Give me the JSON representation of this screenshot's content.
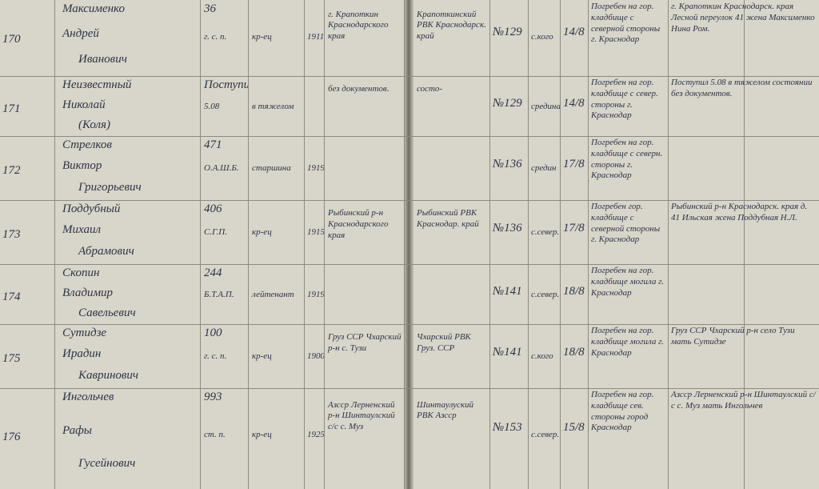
{
  "rows": [
    {
      "number": "170",
      "surname": "Максименко",
      "first_name": "Андрей",
      "patronymic": "Иванович",
      "unit": "36",
      "unit_type": "г. с. п.",
      "rank": "кр-ец",
      "birth_year": "1911",
      "birthplace": "г. Крапоткин Краснодарского края",
      "draft_office": "Крапоткинский РВК Краснодарск. край",
      "record_no": "№129",
      "cause": "с.кого",
      "date": "14/8",
      "burial": "Погребен на гор. кладбище с северной стороны г. Краснодар",
      "relatives": "г. Крапоткин Краснодарск. края Лесной переулок 41 жена Максименко Нина Ром."
    },
    {
      "number": "171",
      "surname": "Неизвестный",
      "first_name": "Николай",
      "patronymic": "(Коля)",
      "unit": "Поступил",
      "unit_type": "5.08",
      "rank": "в тяжелом",
      "birth_year": "",
      "birthplace": "без документов.",
      "draft_office": "состо-",
      "record_no": "№129",
      "cause": "средина",
      "date": "14/8",
      "burial": "Погребен на гор. кладбище с север. стороны г. Краснодар",
      "relatives": "Поступил 5.08 в тяжелом состоянии без документов."
    },
    {
      "number": "172",
      "surname": "Стрелков",
      "first_name": "Виктор",
      "patronymic": "Григорьевич",
      "unit": "471",
      "unit_type": "О.А.Ш.Б.",
      "rank": "старшина",
      "birth_year": "1919",
      "birthplace": "",
      "draft_office": "",
      "record_no": "№136",
      "cause": "средин",
      "date": "17/8",
      "burial": "Погребен на гор. кладбище с северн. стороны г. Краснодар",
      "relatives": ""
    },
    {
      "number": "173",
      "surname": "Поддубный",
      "first_name": "Михаил",
      "patronymic": "Абрамович",
      "unit": "406",
      "unit_type": "С.Г.П.",
      "rank": "кр-ец",
      "birth_year": "1915",
      "birthplace": "Рыбинский р-н Краснодарского края",
      "draft_office": "Рыбинский РВК Краснодар. край",
      "record_no": "№136",
      "cause": "с.север.",
      "date": "17/8",
      "burial": "Погребен гор. кладбище с северной стороны г. Краснодар",
      "relatives": "Рыбинский р-н Краснодарск. края д. 41 Ильская жена Поддубная Н.Л."
    },
    {
      "number": "174",
      "surname": "Скопин",
      "first_name": "Владимир",
      "patronymic": "Савельевич",
      "unit": "244",
      "unit_type": "Б.Т.А.П.",
      "rank": "лейтенант",
      "birth_year": "1919",
      "birthplace": "",
      "draft_office": "",
      "record_no": "№141",
      "cause": "с.север.",
      "date": "18/8",
      "burial": "Погребен на гор. кладбище могила г. Краснодар",
      "relatives": ""
    },
    {
      "number": "175",
      "surname": "Сутидзе",
      "first_name": "Ирадин",
      "patronymic": "Кавринович",
      "unit": "100",
      "unit_type": "г. с. п.",
      "rank": "кр-ец",
      "birth_year": "1900",
      "birthplace": "Груз ССР Чхарский р-н с. Тузи",
      "draft_office": "Чхарский РВК Груз. ССР",
      "record_no": "№141",
      "cause": "с.кого",
      "date": "18/8",
      "burial": "Погребен на гор. кладбище могила г. Краснодар",
      "relatives": "Груз ССР Чхарский р-н село Тузи мать Сутидзе"
    },
    {
      "number": "176",
      "surname": "Ингольчев",
      "first_name": "Рафы",
      "patronymic": "Гусейнович",
      "unit": "993",
      "unit_type": "ст. п.",
      "rank": "кр-ец",
      "birth_year": "1925",
      "birthplace": "Азсср Лерненский р-н Шинтаулский с/с с. Муз",
      "draft_office": "Шинтаулуский РВК Азсср",
      "record_no": "№153",
      "cause": "с.север.",
      "date": "15/8",
      "burial": "Погребен на гор. кладбище сев. стороны город Краснодар",
      "relatives": "Азсср Лерненский р-н Шинтаулский с/с с. Муз мать Ингольчев"
    }
  ]
}
